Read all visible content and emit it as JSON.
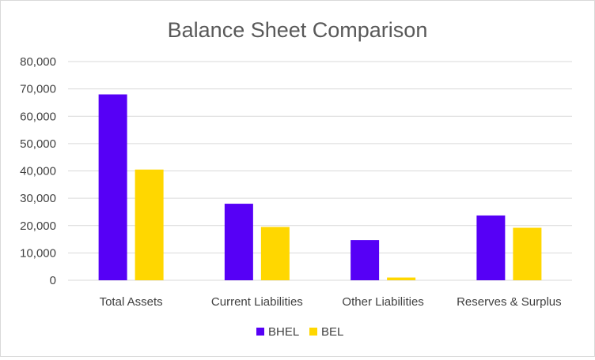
{
  "chart_data": {
    "type": "bar",
    "title": "Balance Sheet Comparison",
    "xlabel": "",
    "ylabel": "",
    "categories": [
      "Total Assets",
      "Current Liabilities",
      "Other Liabilities",
      "Reserves & Surplus"
    ],
    "series": [
      {
        "name": "BHEL",
        "color": "#5600F6",
        "values": [
          68000,
          28000,
          14700,
          23700
        ]
      },
      {
        "name": "BEL",
        "color": "#FFD700",
        "values": [
          40500,
          19500,
          1000,
          19200
        ]
      }
    ],
    "ylim": [
      0,
      80000
    ],
    "yticks": [
      "0",
      "10,000",
      "20,000",
      "30,000",
      "40,000",
      "50,000",
      "60,000",
      "70,000",
      "80,000"
    ],
    "grid": true,
    "legend_position": "bottom"
  }
}
